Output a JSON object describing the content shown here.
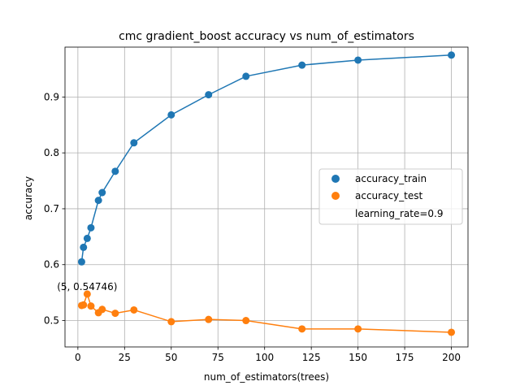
{
  "chart_data": {
    "type": "line",
    "title": "cmc gradient_boost accuracy vs num_of_estimators",
    "xlabel": "num_of_estimators(trees)",
    "ylabel": "accuracy",
    "xlim": [
      -6.9,
      208.9
    ],
    "ylim": [
      0.4528,
      0.9892
    ],
    "xticks": [
      0,
      25,
      50,
      75,
      100,
      125,
      150,
      175,
      200
    ],
    "yticks": [
      0.5,
      0.6,
      0.7,
      0.8,
      0.9
    ],
    "ytick_labels": [
      "0.5",
      "0.6",
      "0.7",
      "0.8",
      "0.9"
    ],
    "grid": true,
    "legend_position": "center-right",
    "series": [
      {
        "name": "accuracy_train",
        "color": "#1f77b4",
        "x": [
          2,
          3,
          5,
          7,
          11,
          13,
          20,
          30,
          50,
          70,
          90,
          120,
          150,
          200
        ],
        "y": [
          0.605,
          0.631,
          0.647,
          0.666,
          0.715,
          0.729,
          0.767,
          0.818,
          0.868,
          0.904,
          0.937,
          0.957,
          0.966,
          0.975
        ]
      },
      {
        "name": "accuracy_test",
        "color": "#ff7f0e",
        "x": [
          2,
          3,
          5,
          7,
          11,
          13,
          20,
          30,
          50,
          70,
          90,
          120,
          150,
          200
        ],
        "y": [
          0.527,
          0.528,
          0.54746,
          0.526,
          0.514,
          0.52,
          0.513,
          0.519,
          0.498,
          0.502,
          0.5,
          0.485,
          0.485,
          0.479
        ]
      }
    ],
    "legend_extra": "learning_rate=0.9",
    "annotation": {
      "text": "(5, 0.54746)",
      "x": 5,
      "y": 0.54746
    }
  }
}
